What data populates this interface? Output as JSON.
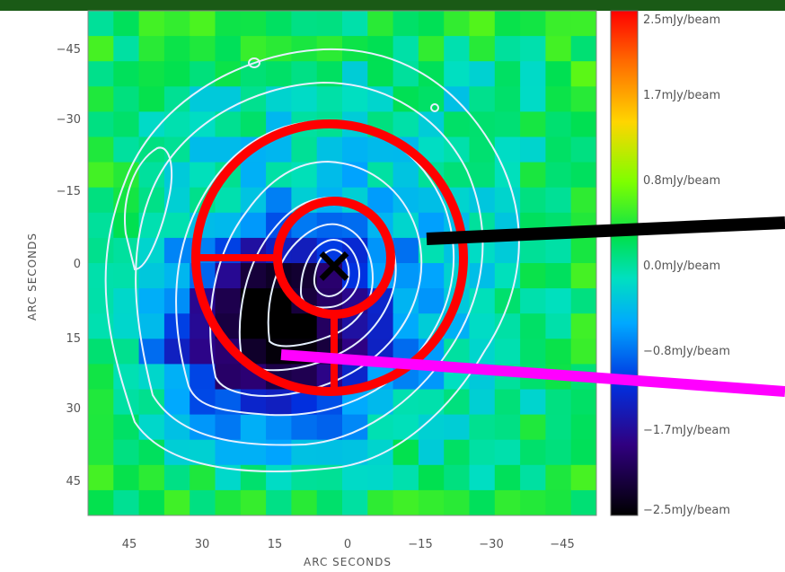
{
  "figure": {
    "x_axis_title": "ARC SECONDS",
    "y_axis_title": "ARC SECONDS",
    "x_ticks": [
      "45",
      "30",
      "15",
      "0",
      "−15",
      "−30",
      "−45"
    ],
    "y_ticks": [
      "−45",
      "−30",
      "−15",
      "0",
      "15",
      "30",
      "45"
    ],
    "colorbar_labels": [
      "2.5mJy/beam",
      "1.7mJy/beam",
      "0.8mJy/beam",
      "0.0mJy/beam",
      "−0.8mJy/beam",
      "−1.7mJy/beam",
      "−2.5mJy/beam"
    ],
    "center_marker": "×",
    "colors": {
      "annotation_circles": "#ff0000",
      "pointer_black": "#000000",
      "pointer_magenta": "#ff00ff",
      "contours": "#e6f0ff",
      "top_strip": "#1a5a16"
    }
  }
}
